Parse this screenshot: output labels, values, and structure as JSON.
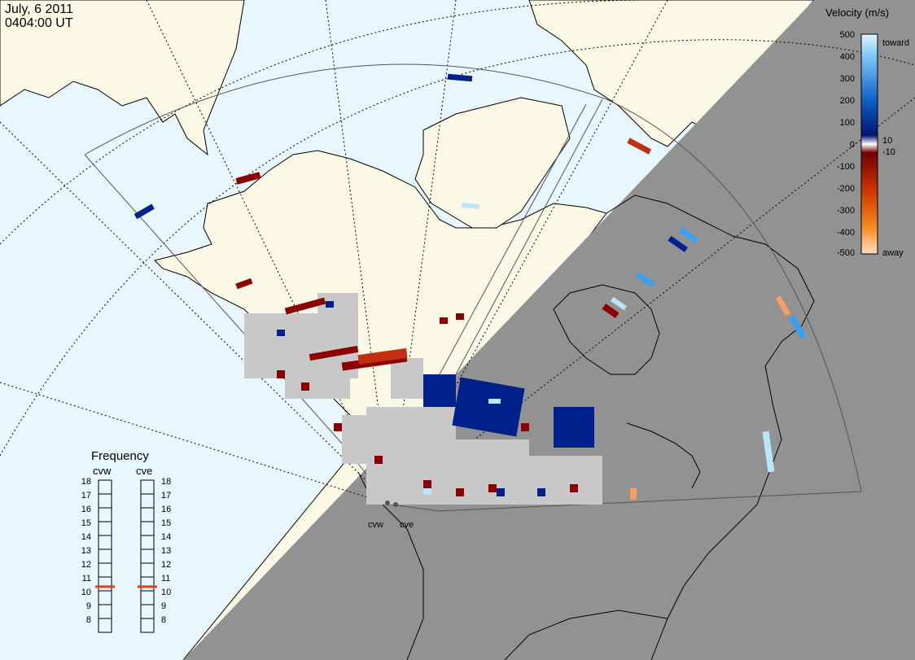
{
  "header": {
    "date": "July, 6 2011",
    "time": "0404:00 UT"
  },
  "colors": {
    "ocean_day": "#e8f6fd",
    "land_day": "#fcf8e6",
    "night": "#929292",
    "ground_scatter": "#c8c8c8"
  },
  "velocity_scale": {
    "title": "Velocity (m/s)",
    "toward_label": "toward",
    "away_label": "away",
    "ticks": [
      "500",
      "400",
      "300",
      "200",
      "100",
      "0",
      "-100",
      "-200",
      "-300",
      "-400",
      "-500"
    ],
    "small_ticks": [
      "10",
      "-10"
    ]
  },
  "frequency_panel": {
    "title": "Frequency",
    "radars": [
      {
        "name": "cvw",
        "freq_mhz": 10.8
      },
      {
        "name": "cve",
        "freq_mhz": 10.8
      }
    ],
    "ticks": [
      "18",
      "17",
      "16",
      "15",
      "14",
      "13",
      "12",
      "11",
      "10",
      "9",
      "8"
    ],
    "marker_color": "#e0401a"
  },
  "radar_labels": [
    "cvw",
    "cve"
  ]
}
